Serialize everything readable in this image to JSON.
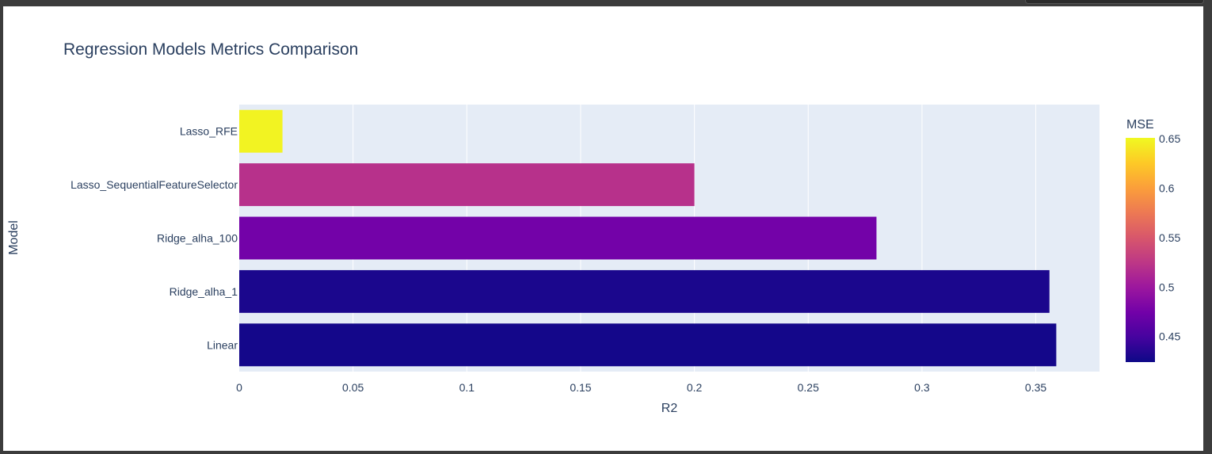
{
  "chart_data": {
    "type": "bar",
    "orientation": "horizontal",
    "title": "Regression Models Metrics Comparison",
    "xlabel": "R2",
    "ylabel": "Model",
    "categories": [
      "Linear",
      "Ridge_alha_1",
      "Ridge_alha_100",
      "Lasso_SequentialFeatureSelector",
      "Lasso_RFE"
    ],
    "series": [
      {
        "x": [
          0.359,
          0.356,
          0.28,
          0.2,
          0.019
        ],
        "color_values_mse": [
          0.427,
          0.43,
          0.475,
          0.52,
          0.648
        ]
      }
    ],
    "xlim": [
      0,
      0.378
    ],
    "xticks": [
      0,
      0.05,
      0.1,
      0.15,
      0.2,
      0.25,
      0.3,
      0.35
    ],
    "xtick_labels": [
      "0",
      "0.05",
      "0.1",
      "0.15",
      "0.2",
      "0.25",
      "0.3",
      "0.35"
    ],
    "grid": true,
    "colorbar": {
      "title": "MSE",
      "range": [
        0.424,
        0.651
      ],
      "ticks": [
        0.45,
        0.5,
        0.55,
        0.6,
        0.65
      ],
      "tick_labels": [
        "0.45",
        "0.5",
        "0.55",
        "0.6",
        "0.65"
      ],
      "colorscale": "plasma",
      "position": "right"
    },
    "colors": {
      "plot_bg": "#e5ecf6",
      "grid": "#ffffff",
      "text": "#2a3f5f"
    }
  }
}
